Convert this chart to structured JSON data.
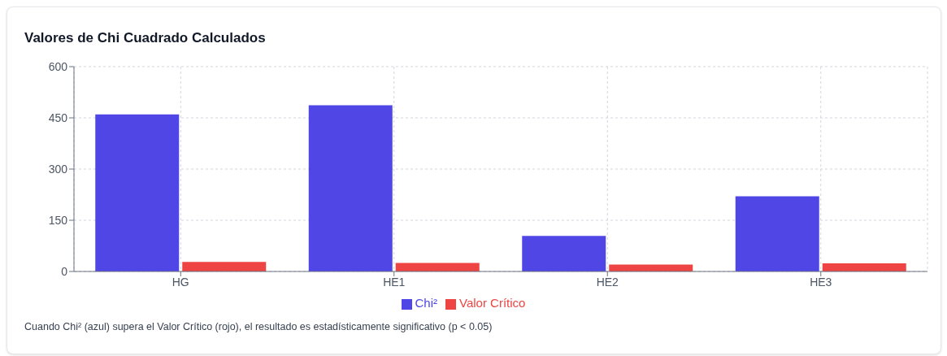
{
  "chart_data": {
    "type": "bar",
    "title": "Valores de Chi Cuadrado Calculados",
    "categories": [
      "HG",
      "HE1",
      "HE2",
      "HE3"
    ],
    "series": [
      {
        "name": "Chi²",
        "color": "#4f46e5",
        "values": [
          460,
          487,
          104,
          220
        ]
      },
      {
        "name": "Valor Crítico",
        "color": "#ef4444",
        "values": [
          28,
          25,
          20,
          24
        ]
      }
    ],
    "ylim": [
      0,
      600
    ],
    "yticks": [
      0,
      150,
      300,
      450,
      600
    ],
    "grid": true,
    "legend": "bottom",
    "annotations": [
      "Cuando Chi² (azul) supera el Valor Crítico (rojo), el resultado es estadísticamente significativo (p < 0.05)"
    ]
  }
}
